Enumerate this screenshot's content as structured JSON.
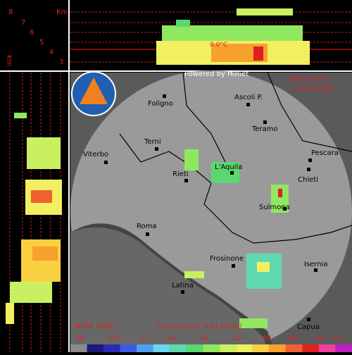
{
  "header": {
    "height_unit": "Km",
    "heights": [
      "8",
      "7",
      "6",
      "5",
      "4",
      "3"
    ],
    "side_unit": "Km",
    "freezing_label": "0.0°C"
  },
  "map": {
    "credit": "Powered by Himet",
    "date": "08 Jul 2015",
    "time": "14:00 CEST",
    "cities": [
      "Foligno",
      "Ascoli P.",
      "Teramo",
      "Terni",
      "Viterbo",
      "Pescara",
      "Rieti",
      "L'Aquila",
      "Chieti",
      "Sulmona",
      "Roma",
      "Frosinone",
      "Isernia",
      "Latina",
      "Capua"
    ]
  },
  "legend": {
    "title": "MVMI (dBZ)",
    "freezing_level": "Freezing level: 4.03 Km/asl",
    "labels": [
      "-30",
      "-10",
      "0",
      "10",
      "20",
      "30",
      "40",
      "50",
      "60",
      "65"
    ],
    "colors": [
      "#8a8a8a",
      "#1a1a80",
      "#2a2ab8",
      "#3c5ae0",
      "#4fa0f0",
      "#6ad8f0",
      "#60d8b0",
      "#5ad870",
      "#90e860",
      "#c8f060",
      "#f0f060",
      "#f8d040",
      "#f8a030",
      "#f06030",
      "#e02020",
      "#f040a0",
      "#c020c0"
    ]
  }
}
